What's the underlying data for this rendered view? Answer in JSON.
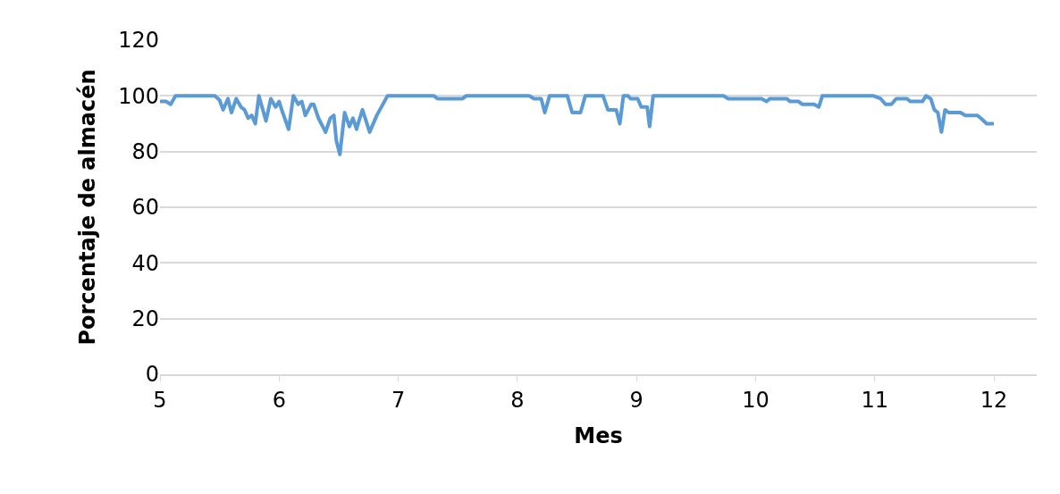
{
  "chart_data": {
    "type": "line",
    "xlabel": "Mes",
    "ylabel": "Porcentaje de almacén",
    "xlim": [
      5,
      12.36
    ],
    "xticks": [
      5,
      6,
      7,
      8,
      9,
      10,
      11,
      12
    ],
    "ylim": [
      0,
      120
    ],
    "yticks": [
      0,
      20,
      40,
      60,
      80,
      100,
      120
    ],
    "grid": "y",
    "marker": "none",
    "line_style": "solid",
    "x": [
      5.0,
      5.05,
      5.09,
      5.13,
      5.46,
      5.5,
      5.53,
      5.57,
      5.6,
      5.64,
      5.68,
      5.71,
      5.74,
      5.77,
      5.8,
      5.83,
      5.89,
      5.93,
      5.97,
      6.0,
      6.03,
      6.08,
      6.12,
      6.16,
      6.19,
      6.22,
      6.27,
      6.29,
      6.33,
      6.39,
      6.43,
      6.46,
      6.48,
      6.51,
      6.55,
      6.59,
      6.62,
      6.65,
      6.67,
      6.7,
      6.76,
      6.82,
      6.91,
      7.3,
      7.33,
      7.54,
      7.57,
      8.1,
      8.14,
      8.2,
      8.23,
      8.27,
      8.42,
      8.46,
      8.53,
      8.57,
      8.72,
      8.76,
      8.83,
      8.86,
      8.89,
      8.93,
      8.95,
      9.01,
      9.04,
      9.09,
      9.11,
      9.14,
      9.73,
      9.77,
      10.05,
      10.09,
      10.12,
      10.26,
      10.29,
      10.36,
      10.39,
      10.49,
      10.53,
      10.56,
      10.99,
      11.05,
      11.09,
      11.14,
      11.18,
      11.27,
      11.3,
      11.4,
      11.43,
      11.47,
      11.5,
      11.53,
      11.56,
      11.59,
      11.62,
      11.72,
      11.76,
      11.86,
      11.89,
      11.94,
      12.0
    ],
    "series": [
      {
        "color": "#5b9bd5",
        "values": [
          98,
          98,
          97,
          100,
          100,
          98.5,
          95,
          99,
          94,
          99,
          96,
          95,
          92,
          93,
          90,
          100,
          91,
          99,
          96,
          98,
          94,
          88,
          100,
          97,
          98,
          93,
          97,
          97,
          92,
          87,
          92,
          93,
          84,
          79,
          94,
          89,
          92,
          88,
          91,
          95,
          87,
          93,
          100,
          100,
          99,
          99,
          100,
          100,
          99,
          99,
          94,
          100,
          100,
          94,
          94,
          100,
          100,
          95,
          95,
          90,
          100,
          100,
          99,
          99,
          96,
          96,
          89,
          100,
          100,
          99,
          99,
          98,
          99,
          99,
          98,
          98,
          97,
          97,
          96,
          100,
          100,
          99,
          97,
          97,
          99,
          99,
          98,
          98,
          100,
          99,
          95,
          94,
          87,
          95,
          94,
          94,
          93,
          93,
          92,
          90,
          90
        ]
      }
    ]
  }
}
